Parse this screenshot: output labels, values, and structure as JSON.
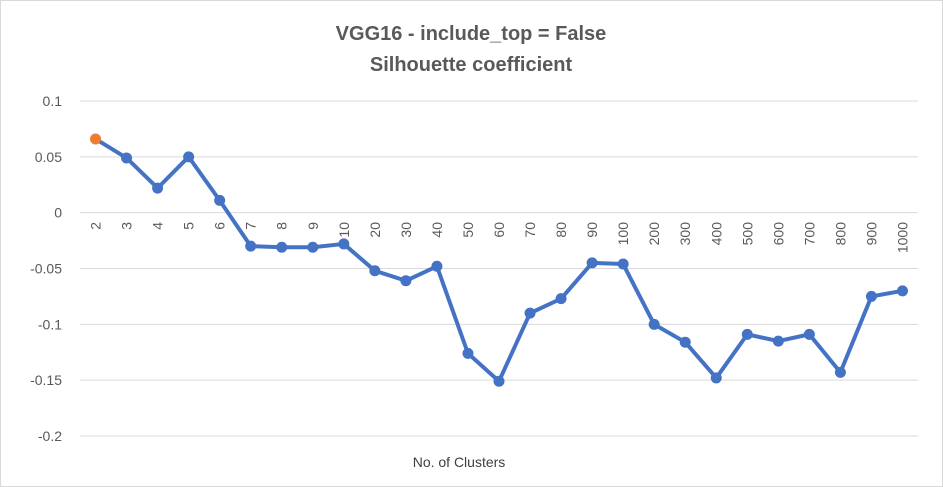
{
  "chart_data": {
    "type": "line",
    "title": "VGG16 - include_top = False",
    "subtitle": "Silhouette coefficient",
    "xlabel": "No. of Clusters",
    "ylabel": "",
    "ylim": [
      -0.2,
      0.1
    ],
    "yticks": [
      0.1,
      0.05,
      0,
      -0.05,
      -0.1,
      -0.15,
      -0.2
    ],
    "ytick_labels": [
      "0.1",
      "0.05",
      "0",
      "-0.05",
      "-0.1",
      "-0.15",
      "-0.2"
    ],
    "grid": true,
    "legend": "none",
    "categories": [
      "2",
      "3",
      "4",
      "5",
      "6",
      "7",
      "8",
      "9",
      "10",
      "20",
      "30",
      "40",
      "50",
      "60",
      "70",
      "80",
      "90",
      "100",
      "200",
      "300",
      "400",
      "500",
      "600",
      "700",
      "800",
      "900",
      "1000"
    ],
    "series": [
      {
        "values": [
          0.066,
          0.049,
          0.022,
          0.05,
          0.011,
          -0.03,
          -0.031,
          -0.031,
          -0.028,
          -0.052,
          -0.061,
          -0.048,
          -0.126,
          -0.151,
          -0.09,
          -0.077,
          -0.045,
          -0.046,
          -0.1,
          -0.116,
          -0.148,
          -0.109,
          -0.115,
          -0.109,
          -0.143,
          -0.075,
          -0.07
        ],
        "color": "#4472c4",
        "highlight_index": 0,
        "highlight_color": "#ed7d31"
      }
    ]
  }
}
